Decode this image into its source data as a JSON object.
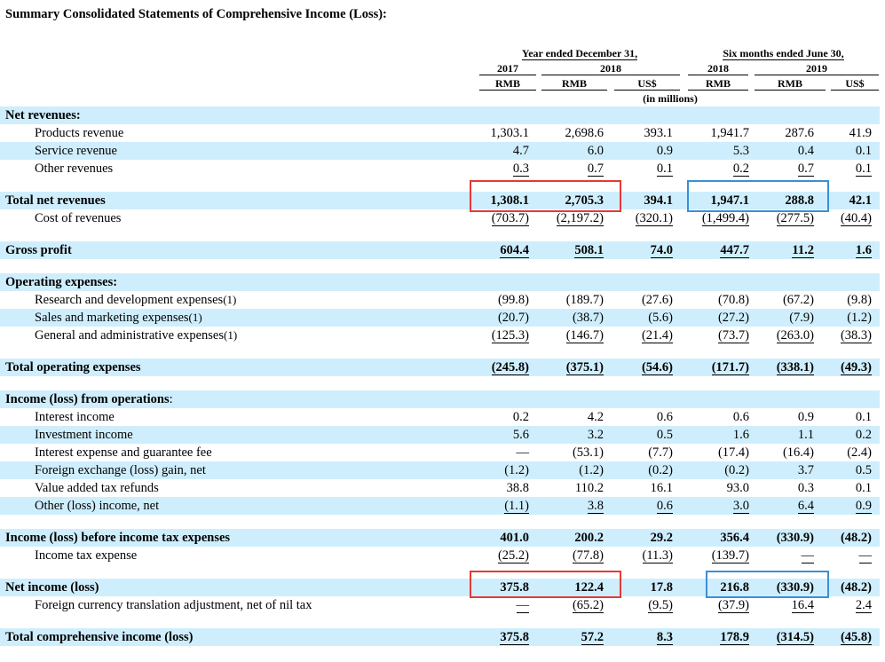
{
  "title": "Summary Consolidated Statements of Comprehensive Income (Loss):",
  "header": {
    "group1": "Year ended December 31,",
    "group2": "Six months ended June 30,",
    "year_2017": "2017",
    "year_2018a": "2018",
    "year_2018b": "2018",
    "year_2019": "2019",
    "cur": [
      "RMB",
      "RMB",
      "US$",
      "RMB",
      "RMB",
      "US$"
    ],
    "unit": "(in millions)"
  },
  "rows": [
    {
      "label": "Net revenues:",
      "bold": true,
      "values": [
        "",
        "",
        "",
        "",
        "",
        ""
      ]
    },
    {
      "label": "Products revenue",
      "values": [
        "1,303.1",
        "2,698.6",
        "393.1",
        "1,941.7",
        "287.6",
        "41.9"
      ]
    },
    {
      "label": "Service revenue",
      "values": [
        "4.7",
        "6.0",
        "0.9",
        "5.3",
        "0.4",
        "0.1"
      ]
    },
    {
      "label": "Other revenues",
      "values": [
        "0.3",
        "0.7",
        "0.1",
        "0.2",
        "0.7",
        "0.1"
      ]
    },
    {
      "label": "Total net revenues",
      "bold": true,
      "values": [
        "1,308.1",
        "2,705.3",
        "394.1",
        "1,947.1",
        "288.8",
        "42.1"
      ]
    },
    {
      "label": "Cost of revenues",
      "values": [
        "(703.7)",
        "(2,197.2)",
        "(320.1)",
        "(1,499.4)",
        "(277.5)",
        "(40.4)"
      ]
    },
    {
      "label": "Gross profit",
      "bold": true,
      "values": [
        "604.4",
        "508.1",
        "74.0",
        "447.7",
        "11.2",
        "1.6"
      ]
    },
    {
      "label": "Operating expenses:",
      "bold": true,
      "values": [
        "",
        "",
        "",
        "",
        "",
        ""
      ]
    },
    {
      "label": "Research and development expenses",
      "note": "(1)",
      "values": [
        "(99.8)",
        "(189.7)",
        "(27.6)",
        "(70.8)",
        "(67.2)",
        "(9.8)"
      ]
    },
    {
      "label": "Sales and marketing expenses",
      "note": "(1)",
      "values": [
        "(20.7)",
        "(38.7)",
        "(5.6)",
        "(27.2)",
        "(7.9)",
        "(1.2)"
      ]
    },
    {
      "label": "General and administrative expenses",
      "note": "(1)",
      "values": [
        "(125.3)",
        "(146.7)",
        "(21.4)",
        "(73.7)",
        "(263.0)",
        "(38.3)"
      ]
    },
    {
      "label": "Total operating expenses",
      "bold": true,
      "values": [
        "(245.8)",
        "(375.1)",
        "(54.6)",
        "(171.7)",
        "(338.1)",
        "(49.3)"
      ]
    },
    {
      "label": "Income (loss) from operations",
      "suffix": ":",
      "bold": true,
      "values": [
        "",
        "",
        "",
        "",
        "",
        ""
      ]
    },
    {
      "label": "Interest income",
      "values": [
        "0.2",
        "4.2",
        "0.6",
        "0.6",
        "0.9",
        "0.1"
      ]
    },
    {
      "label": "Investment income",
      "values": [
        "5.6",
        "3.2",
        "0.5",
        "1.6",
        "1.1",
        "0.2"
      ]
    },
    {
      "label": "Interest expense and guarantee fee",
      "values": [
        "—",
        "(53.1)",
        "(7.7)",
        "(17.4)",
        "(16.4)",
        "(2.4)"
      ]
    },
    {
      "label": "Foreign exchange (loss) gain, net",
      "values": [
        "(1.2)",
        "(1.2)",
        "(0.2)",
        "(0.2)",
        "3.7",
        "0.5"
      ]
    },
    {
      "label": "Value added tax refunds",
      "values": [
        "38.8",
        "110.2",
        "16.1",
        "93.0",
        "0.3",
        "0.1"
      ]
    },
    {
      "label": "Other (loss) income, net",
      "values": [
        "(1.1)",
        "3.8",
        "0.6",
        "3.0",
        "6.4",
        "0.9"
      ]
    },
    {
      "label": "Income (loss) before income tax expenses",
      "bold": true,
      "values": [
        "401.0",
        "200.2",
        "29.2",
        "356.4",
        "(330.9)",
        "(48.2)"
      ]
    },
    {
      "label": "Income tax expense",
      "values": [
        "(25.2)",
        "(77.8)",
        "(11.3)",
        "(139.7)",
        "—",
        "—"
      ]
    },
    {
      "label": "Net income (loss)",
      "bold": true,
      "values": [
        "375.8",
        "122.4",
        "17.8",
        "216.8",
        "(330.9)",
        "(48.2)"
      ]
    },
    {
      "label": "Foreign currency translation adjustment, net of nil tax",
      "values": [
        "—",
        "(65.2)",
        "(9.5)",
        "(37.9)",
        "16.4",
        "2.4"
      ]
    },
    {
      "label": "Total comprehensive income (loss)",
      "bold": true,
      "values": [
        "375.8",
        "57.2",
        "8.3",
        "178.9",
        "(314.5)",
        "(45.8)"
      ]
    }
  ],
  "highlight_colors": {
    "red": "#e53935",
    "blue": "#3a8fd6"
  }
}
